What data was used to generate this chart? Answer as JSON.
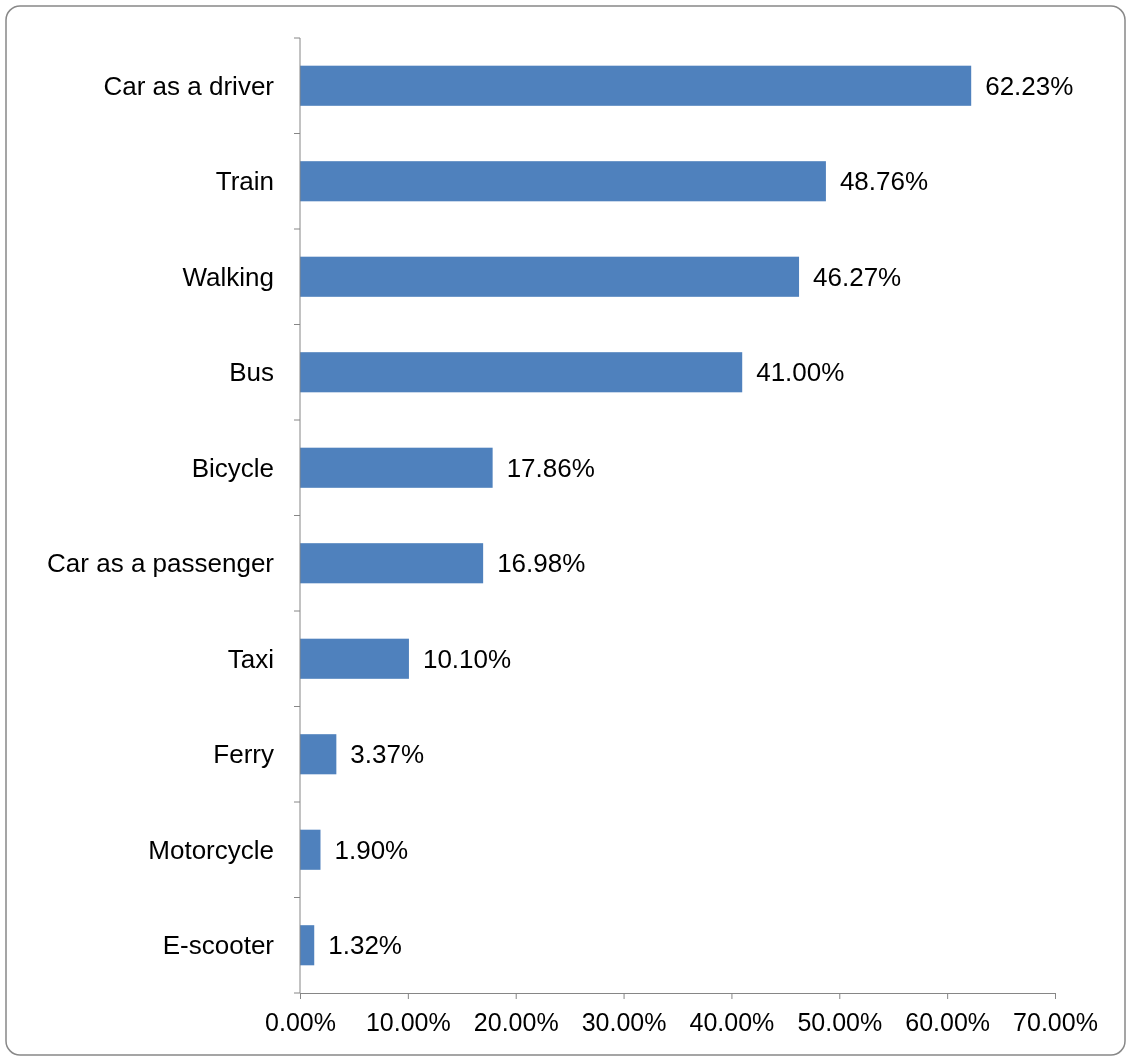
{
  "chart_data": {
    "type": "bar",
    "orientation": "horizontal",
    "categories": [
      "Car as a driver",
      "Train",
      "Walking",
      "Bus",
      "Bicycle",
      "Car as a passenger",
      "Taxi",
      "Ferry",
      "Motorcycle",
      "E-scooter"
    ],
    "values": [
      62.23,
      48.76,
      46.27,
      41.0,
      17.86,
      16.98,
      10.1,
      3.37,
      1.9,
      1.32
    ],
    "value_labels": [
      "62.23%",
      "48.76%",
      "46.27%",
      "41.00%",
      "17.86%",
      "16.98%",
      "10.10%",
      "3.37%",
      "1.90%",
      "1.32%"
    ],
    "color": "#4f81bd",
    "xlim": [
      0,
      70
    ],
    "xticks": [
      {
        "value": 0,
        "label": "0.00%"
      },
      {
        "value": 10,
        "label": "10.00%"
      },
      {
        "value": 20,
        "label": "20.00%"
      },
      {
        "value": 30,
        "label": "30.00%"
      },
      {
        "value": 40,
        "label": "40.00%"
      },
      {
        "value": 50,
        "label": "50.00%"
      },
      {
        "value": 60,
        "label": "60.00%"
      },
      {
        "value": 70,
        "label": "70.00%"
      }
    ],
    "grid": false
  }
}
